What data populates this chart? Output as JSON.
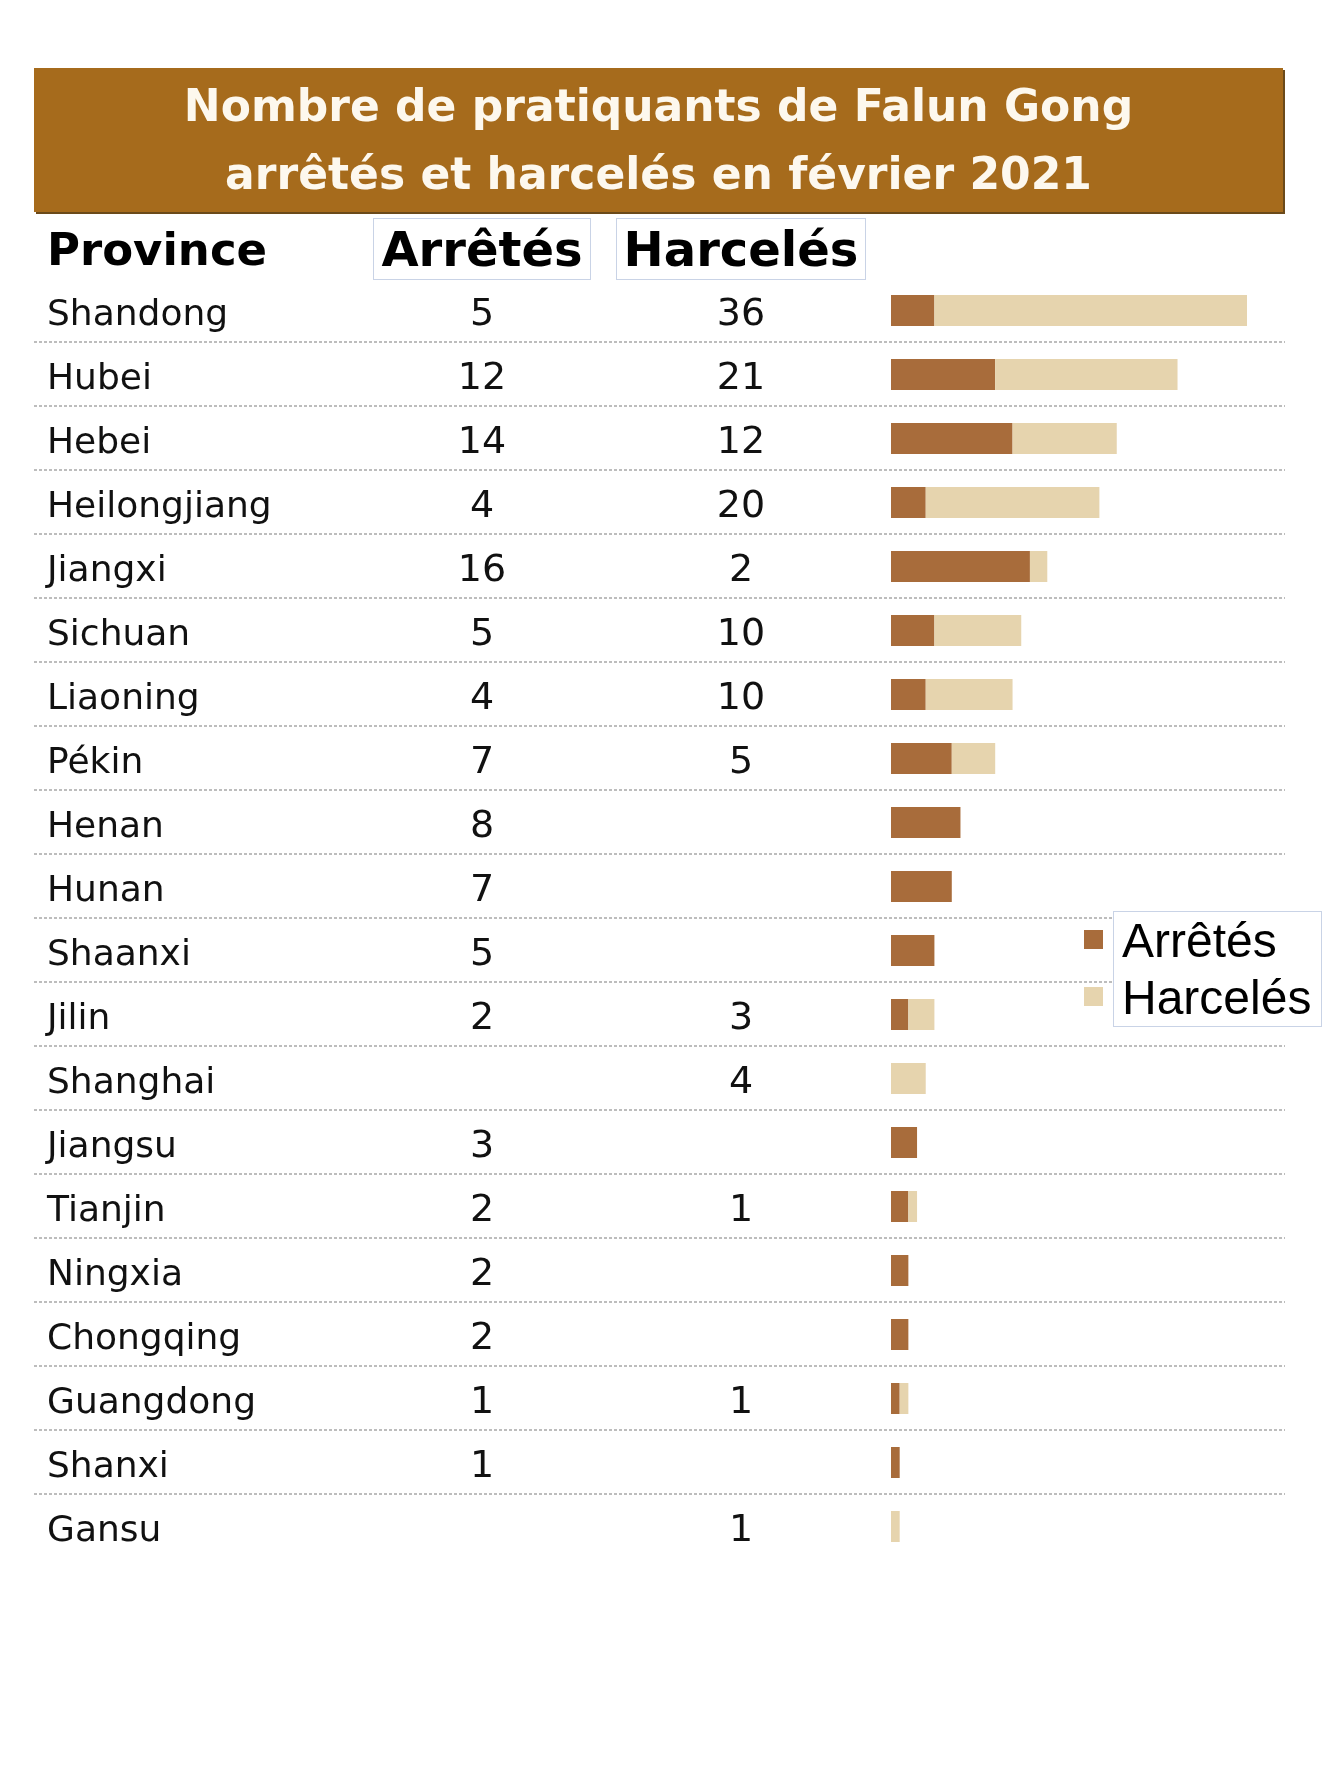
{
  "chart_data": {
    "type": "bar",
    "orientation": "horizontal",
    "stacked": true,
    "title": "Nombre de pratiquants de Falun Gong arrêtés et harcelés en février 2021",
    "annotations": [
      "Province"
    ],
    "categories": [
      "Shandong",
      "Hubei",
      "Hebei",
      "Heilongjiang",
      "Jiangxi",
      "Sichuan",
      "Liaoning",
      "Pékin",
      "Henan",
      "Hunan",
      "Shaanxi",
      "Jilin",
      "Shanghai",
      "Jiangsu",
      "Tianjin",
      "Ningxia",
      "Chongqing",
      "Guangdong",
      "Shanxi",
      "Gansu"
    ],
    "series": [
      {
        "name": "Arrêtés",
        "color": "#a86c3b",
        "values": [
          5,
          12,
          14,
          4,
          16,
          5,
          4,
          7,
          8,
          7,
          5,
          2,
          null,
          3,
          2,
          2,
          2,
          1,
          1,
          null
        ]
      },
      {
        "name": "Harcelés",
        "color": "#e6d4ae",
        "values": [
          36,
          21,
          12,
          20,
          2,
          10,
          10,
          5,
          null,
          null,
          null,
          3,
          4,
          null,
          1,
          null,
          null,
          1,
          null,
          1
        ]
      }
    ],
    "data_labels": true,
    "grid": "y",
    "legend": "right",
    "tick_labels": "y"
  }
}
